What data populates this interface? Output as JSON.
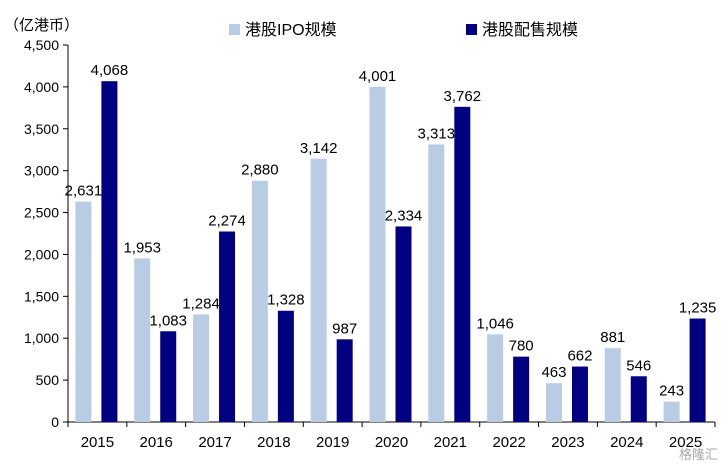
{
  "chart_data": {
    "type": "bar",
    "unit_label": "（亿港币）",
    "categories": [
      "2015",
      "2016",
      "2017",
      "2018",
      "2019",
      "2020",
      "2021",
      "2022",
      "2023",
      "2024",
      "2025"
    ],
    "series": [
      {
        "name": "港股IPO规模",
        "color": "#b8cce4",
        "values": [
          2631,
          1953,
          1284,
          2880,
          3142,
          4001,
          3313,
          1046,
          463,
          881,
          243
        ],
        "labels": [
          "2,631",
          "1,953",
          "1,284",
          "2,880",
          "3,142",
          "4,001",
          "3,313",
          "1,046",
          "463",
          "881",
          "243"
        ]
      },
      {
        "name": "港股配售规模",
        "color": "#000080",
        "values": [
          4068,
          1083,
          2274,
          1328,
          987,
          2334,
          3762,
          780,
          662,
          546,
          1235
        ],
        "labels": [
          "4,068",
          "1,083",
          "2,274",
          "1,328",
          "987",
          "2,334",
          "3,762",
          "780",
          "662",
          "546",
          "1,235"
        ]
      }
    ],
    "yticks": [
      "0",
      "500",
      "1,000",
      "1,500",
      "2,000",
      "2,500",
      "3,000",
      "3,500",
      "4,000",
      "4,500"
    ],
    "ylim": [
      0,
      4500
    ],
    "legend_position": "top",
    "grid": false
  },
  "watermark": "格隆汇"
}
